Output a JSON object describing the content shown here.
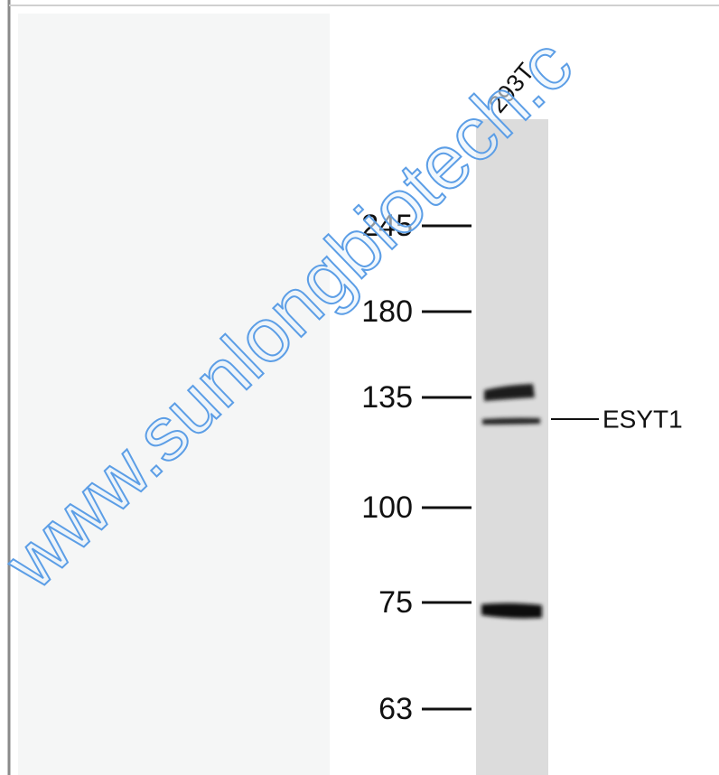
{
  "figure": {
    "lane_label": "293T",
    "markers": [
      245,
      180,
      135,
      100,
      75,
      63
    ],
    "target_label": "ESYT1",
    "watermark": "www.sunlongbiotech.c"
  }
}
